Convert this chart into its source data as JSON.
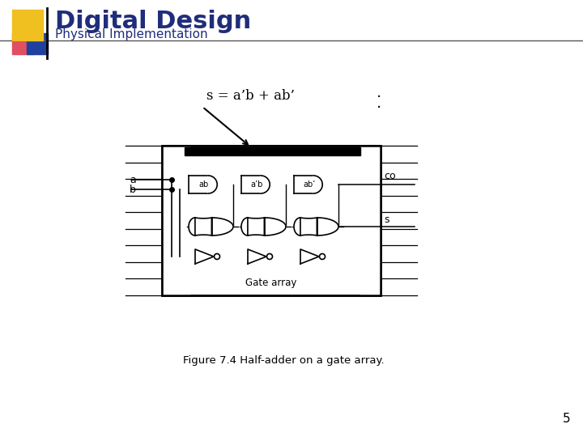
{
  "bg_color": "#ffffff",
  "title": "Digital Design",
  "subtitle": "Physical Implementation",
  "title_color": "#1f2d7a",
  "subtitle_color": "#1f2d7a",
  "figure_caption": "Figure 7.4 Half-adder on a gate array.",
  "page_number": "5",
  "formula": "s = a’b + ab’",
  "logo_yellow": "#f0c020",
  "logo_red": "#e05060",
  "logo_blue": "#2040a0",
  "header_line_color": "#888888",
  "gate_array_label": "Gate array",
  "gate_labels": [
    "ab",
    "a’b",
    "ab’"
  ]
}
